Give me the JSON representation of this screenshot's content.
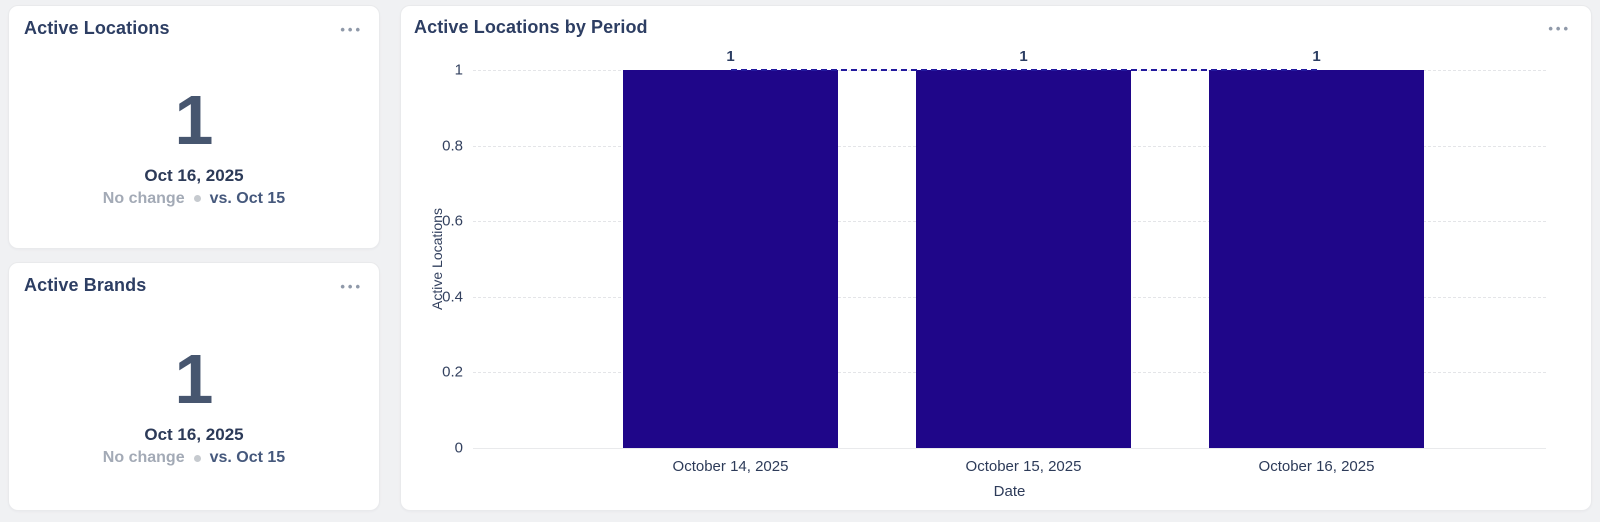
{
  "page": {
    "background": "#f0f1f3"
  },
  "icons": {
    "more_options_glyph": "•••"
  },
  "colors": {
    "bar": "#1f0689",
    "trend_line": "#241b9e",
    "card_title_text": "#2d3e63",
    "kpi_value_text": "#47566f",
    "kpi_date_text": "#2c3a58",
    "muted_change_text": "#a3aab6",
    "comparison_text": "#45587c",
    "axis_text": "#33415f",
    "gridline": "#e4e5e8"
  },
  "kpi_cards": [
    {
      "title": "Active Locations",
      "value": "1",
      "date": "Oct 16, 2025",
      "change_label": "No change",
      "comparison_label": "vs. Oct 15"
    },
    {
      "title": "Active Brands",
      "value": "1",
      "date": "Oct 16, 2025",
      "change_label": "No change",
      "comparison_label": "vs. Oct 15"
    }
  ],
  "chart_card": {
    "title": "Active Locations by Period"
  },
  "chart_data": {
    "type": "bar",
    "title": "Active Locations by Period",
    "categories": [
      "October 14, 2025",
      "October 15, 2025",
      "October 16, 2025"
    ],
    "values": [
      1,
      1,
      1
    ],
    "data_labels": [
      "1",
      "1",
      "1"
    ],
    "overlay_line": {
      "type": "line",
      "style": "dashed",
      "values": [
        1,
        1,
        1
      ],
      "color": "#241b9e"
    },
    "xlabel": "Date",
    "ylabel": "Active Locations",
    "ylim": [
      0,
      1
    ],
    "yticks": [
      "0",
      "0.2",
      "0.4",
      "0.6",
      "0.8",
      "1"
    ],
    "grid": "horizontal-dashed",
    "legend": "none",
    "bar_color": "#1f0689"
  }
}
